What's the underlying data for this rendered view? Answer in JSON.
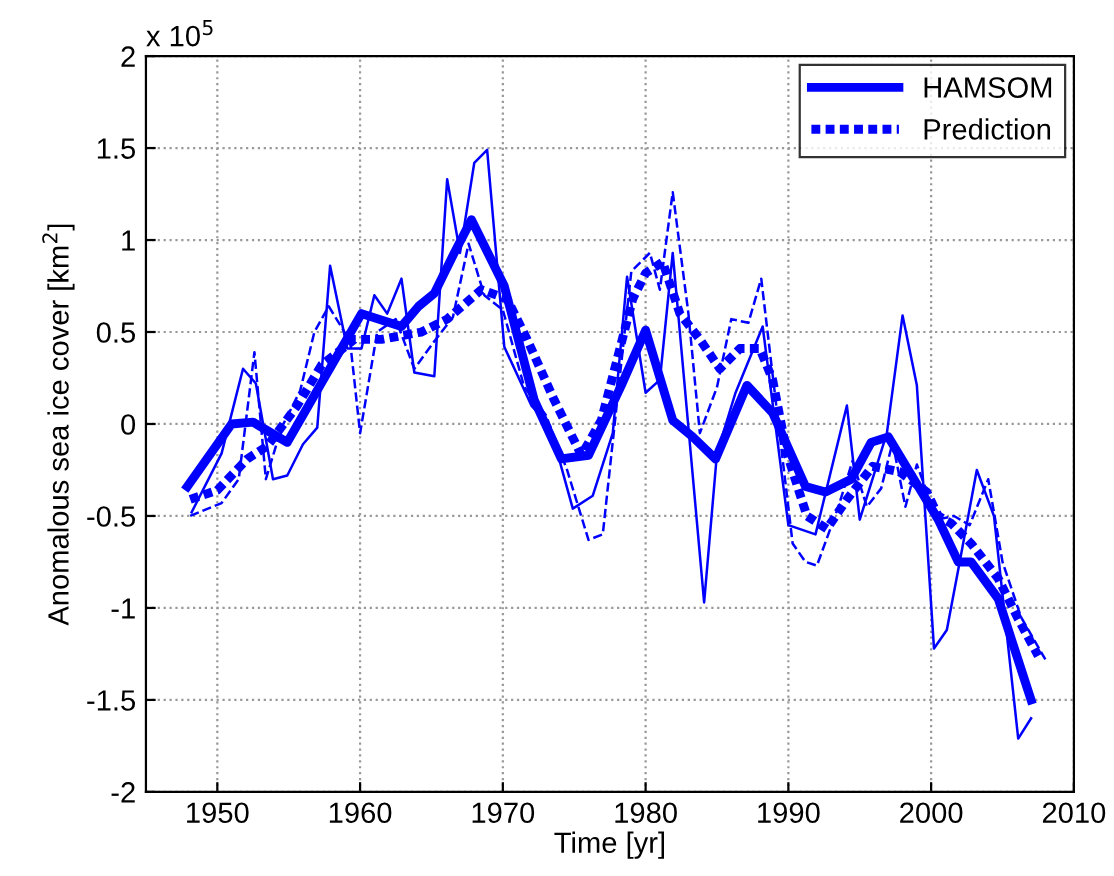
{
  "chart_data": {
    "type": "line",
    "xlabel": "Time [yr]",
    "ylabel": "Anomalous sea ice cover [km$^{2}$]",
    "annotations": [
      "x 10$^{5}$"
    ],
    "xlim": [
      1945,
      2010
    ],
    "xticks": [
      1950,
      1960,
      1970,
      1980,
      1990,
      2000,
      2010
    ],
    "ylim": [
      -2,
      2
    ],
    "yticks": [
      -2,
      -1.5,
      -1,
      -0.5,
      0,
      0.5,
      1,
      1.5,
      2
    ],
    "grid": true,
    "legend": "top right",
    "marker": "none",
    "series": [
      {
        "color": "#0000ff",
        "line_style": "solid",
        "x": [
          1948.2,
          1950.3,
          1951.8,
          1952.7,
          1953.9,
          1954.9,
          1956,
          1957,
          1957.9,
          1959.1,
          1960.1,
          1961,
          1961.9,
          1962.9,
          1963.8,
          1965.2,
          1966.1,
          1967,
          1968,
          1968.9,
          1970.1,
          1972,
          1973.3,
          1974.9,
          1976.3,
          1977.7,
          1978.7,
          1980,
          1981,
          1981.9,
          1984.1,
          1985,
          1986.3,
          1988.2,
          1990,
          1991.9,
          1994.1,
          1995,
          1996.9,
          1998,
          1999,
          2000.2,
          2001.1,
          2002,
          2003.2,
          2004.4,
          2006.1,
          2007
        ],
        "values": [
          -0.48,
          -0.16,
          0.3,
          0.22,
          -0.3,
          -0.28,
          -0.11,
          -0.02,
          0.86,
          0.41,
          0.41,
          0.7,
          0.6,
          0.79,
          0.28,
          0.26,
          1.33,
          0.93,
          1.42,
          1.49,
          0.42,
          0.1,
          -0.01,
          -0.46,
          -0.39,
          -0.05,
          0.8,
          0.17,
          0.24,
          0.93,
          -0.97,
          -0.16,
          0.17,
          0.53,
          -0.55,
          -0.6,
          0.1,
          -0.52,
          -0.05,
          0.59,
          0.21,
          -1.22,
          -1.12,
          -0.75,
          -0.25,
          -0.5,
          -1.71,
          -1.6
        ]
      },
      {
        "color": "#0000ff",
        "line_style": "dashed",
        "x": [
          1948.1,
          1950.3,
          1951.5,
          1952.6,
          1953.4,
          1954.5,
          1955.8,
          1956.8,
          1957.8,
          1959.3,
          1960,
          1961.2,
          1962.5,
          1963.8,
          1965.2,
          1966.5,
          1967.6,
          1968.7,
          1970,
          1971.5,
          1973,
          1974.5,
          1976,
          1977,
          1978,
          1979,
          1980.3,
          1981,
          1981.9,
          1983,
          1983.8,
          1985,
          1986,
          1987.2,
          1988.1,
          1989,
          1990.3,
          1991.2,
          1992,
          1993.5,
          1994.5,
          1995.5,
          1996.5,
          1997.3,
          1998.2,
          1999,
          2000.4,
          2001.6,
          2002.7,
          2004,
          2005,
          2006.3,
          2008
        ],
        "values": [
          -0.5,
          -0.43,
          -0.3,
          0.39,
          -0.3,
          -0.02,
          0.18,
          0.5,
          0.64,
          0.45,
          -0.05,
          0.5,
          0.57,
          0.3,
          0.45,
          0.58,
          0.98,
          0.7,
          0.62,
          0.2,
          0.05,
          -0.25,
          -0.63,
          -0.6,
          0.12,
          0.83,
          0.93,
          0.73,
          1.26,
          0.6,
          -0.05,
          0.2,
          0.57,
          0.55,
          0.79,
          0.2,
          -0.65,
          -0.75,
          -0.77,
          -0.45,
          -0.2,
          -0.45,
          -0.35,
          -0.1,
          -0.45,
          -0.22,
          -0.52,
          -0.5,
          -0.55,
          -0.3,
          -0.75,
          -1.05,
          -1.28
        ]
      },
      {
        "name": "HAMSOM",
        "color": "#0000ff",
        "line_style": "solid",
        "x": [
          1947.9,
          1951,
          1952.5,
          1954.9,
          1957.2,
          1960.1,
          1962.9,
          1964.1,
          1965.2,
          1966.6,
          1967.8,
          1970.1,
          1972.2,
          1974.1,
          1976,
          1978.3,
          1980,
          1981.9,
          1983.3,
          1984.9,
          1987.1,
          1988.9,
          1991.2,
          1992.6,
          1994.4,
          1995.8,
          1997,
          1999.1,
          2000.5,
          2001.9,
          2002.8,
          2004.7,
          2007
        ],
        "values": [
          -0.34,
          0,
          0.01,
          -0.1,
          0.21,
          0.6,
          0.53,
          0.64,
          0.71,
          0.93,
          1.11,
          0.75,
          0.13,
          -0.19,
          -0.17,
          0.21,
          0.51,
          0.02,
          -0.07,
          -0.19,
          0.21,
          0.06,
          -0.34,
          -0.37,
          -0.3,
          -0.1,
          -0.07,
          -0.34,
          -0.52,
          -0.75,
          -0.75,
          -0.95,
          -1.5
        ]
      },
      {
        "name": "Prediction",
        "color": "#0000ff",
        "line_style": "dashed",
        "x": [
          1948.1,
          1950,
          1952.1,
          1953.5,
          1955.6,
          1957.3,
          1959.6,
          1961.5,
          1964.3,
          1966.1,
          1968.5,
          1970.3,
          1971.7,
          1973.6,
          1975.5,
          1976.9,
          1979.1,
          1980,
          1981.2,
          1982.4,
          1983.8,
          1985.2,
          1986.6,
          1988,
          1988.9,
          1989.9,
          1991.3,
          1992.7,
          1994.1,
          1995.9,
          1997.8,
          1999.7,
          2000.5,
          2001.4,
          2002.8,
          2004.7,
          2006.1,
          2007.5
        ],
        "values": [
          -0.41,
          -0.36,
          -0.19,
          -0.12,
          0.1,
          0.32,
          0.46,
          0.46,
          0.5,
          0.57,
          0.73,
          0.68,
          0.46,
          0.13,
          -0.17,
          0.02,
          0.68,
          0.82,
          0.88,
          0.6,
          0.46,
          0.3,
          0.41,
          0.41,
          0.24,
          -0.16,
          -0.5,
          -0.57,
          -0.41,
          -0.23,
          -0.26,
          -0.37,
          -0.5,
          -0.54,
          -0.65,
          -0.84,
          -1.06,
          -1.26
        ]
      }
    ]
  }
}
